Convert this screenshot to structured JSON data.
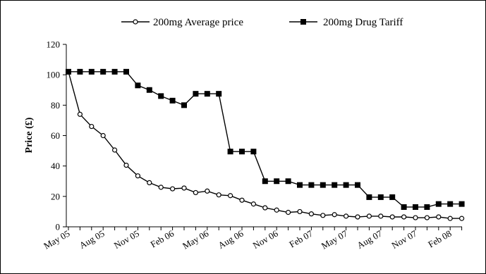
{
  "chart_data": {
    "type": "line",
    "ylabel": "Price (£)",
    "xlabel": "",
    "ylim": [
      0,
      120
    ],
    "yticks": [
      "0",
      "20",
      "40",
      "60",
      "80",
      "100",
      "120"
    ],
    "xtick_labels": [
      "May 05",
      "Aug 05",
      "Nov 05",
      "Feb 06",
      "May 06",
      "Aug 06",
      "Nov 06",
      "Feb 07",
      "May 07",
      "Aug 07",
      "Nov 07",
      "Feb 08"
    ],
    "x": [
      "May 05",
      "Jun 05",
      "Jul 05",
      "Aug 05",
      "Sep 05",
      "Oct 05",
      "Nov 05",
      "Dec 05",
      "Jan 06",
      "Feb 06",
      "Mar 06",
      "Apr 06",
      "May 06",
      "Jun 06",
      "Jul 06",
      "Aug 06",
      "Sep 06",
      "Oct 06",
      "Nov 06",
      "Dec 06",
      "Jan 07",
      "Feb 07",
      "Mar 07",
      "Apr 07",
      "May 07",
      "Jun 07",
      "Jul 07",
      "Aug 07",
      "Sep 07",
      "Oct 07",
      "Nov 07",
      "Dec 07",
      "Jan 08",
      "Feb 08",
      "Mar 08"
    ],
    "legend_position": "top",
    "series": [
      {
        "name": "200mg Average price",
        "marker": "open-circle",
        "color": "#000000",
        "values": [
          102,
          74,
          66,
          60,
          50.5,
          40.5,
          33.5,
          29,
          26,
          25,
          25.5,
          22.5,
          23.5,
          21,
          20.5,
          17.5,
          15,
          12.5,
          11,
          9.5,
          10,
          8.5,
          7.5,
          8,
          7,
          6.5,
          7,
          7,
          6.5,
          6.5,
          6,
          6,
          6.5,
          5.5,
          5.5
        ]
      },
      {
        "name": "200mg Drug Tariff",
        "marker": "filled-square",
        "color": "#000000",
        "values": [
          102,
          102,
          102,
          102,
          102,
          102,
          93,
          90,
          86,
          83,
          80,
          87.5,
          87.5,
          87.5,
          49.5,
          49.5,
          49.5,
          30,
          30,
          30,
          27.5,
          27.5,
          27.5,
          27.5,
          27.5,
          27.5,
          19.5,
          19.5,
          19.5,
          13,
          13,
          13,
          15,
          15,
          15
        ]
      }
    ]
  }
}
